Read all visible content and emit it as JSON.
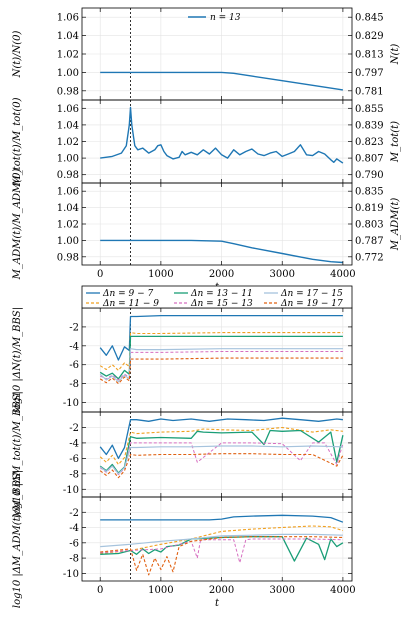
{
  "colors": {
    "blue": "#1f77b4",
    "green": "#1a9e77",
    "lightblue": "#a6c3dd",
    "orange": "#f0a020",
    "magenta": "#d66ec0",
    "darkorange": "#e06010"
  },
  "chart_data": [
    {
      "type": "line",
      "panel": "top-1",
      "legend": [
        "n = 13"
      ],
      "ylabel": "N(t)/N(0)",
      "right_ylabel": "N(t)",
      "yticks": [
        "1.06",
        "1.04",
        "1.02",
        "1.00",
        "0.98"
      ],
      "right_yticks": [
        "0.845",
        "0.829",
        "0.813",
        "0.797",
        "0.781"
      ],
      "ylim": [
        0.97,
        1.07
      ],
      "xlim": [
        -300,
        4150
      ],
      "vline_x": 500,
      "series": [
        {
          "name": "n = 13",
          "x": [
            0,
            500,
            1000,
            1500,
            2000,
            2200,
            2500,
            3000,
            3500,
            4000
          ],
          "y": [
            1.0,
            1.0,
            1.0,
            1.0,
            1.0,
            0.999,
            0.996,
            0.991,
            0.986,
            0.981
          ]
        }
      ]
    },
    {
      "type": "line",
      "panel": "top-2",
      "ylabel": "M_tot(t)/M_tot(0)",
      "right_ylabel": "M_tot(t)",
      "yticks": [
        "1.06",
        "1.04",
        "1.02",
        "1.00",
        "0.98"
      ],
      "right_yticks": [
        "0.855",
        "0.839",
        "0.823",
        "0.807",
        "0.790"
      ],
      "ylim": [
        0.97,
        1.07
      ],
      "xlim": [
        -300,
        4150
      ],
      "vline_x": 500,
      "series": [
        {
          "name": "n = 13",
          "x": [
            0,
            200,
            350,
            430,
            480,
            500,
            520,
            570,
            620,
            700,
            800,
            900,
            950,
            1000,
            1050,
            1100,
            1200,
            1300,
            1350,
            1400,
            1500,
            1600,
            1700,
            1800,
            1900,
            2000,
            2100,
            2200,
            2300,
            2400,
            2500,
            2600,
            2700,
            2800,
            2900,
            3000,
            3100,
            3200,
            3300,
            3400,
            3500,
            3600,
            3700,
            3800,
            3850,
            3900,
            4000
          ],
          "y": [
            1.0,
            1.002,
            1.006,
            1.015,
            1.04,
            1.061,
            1.04,
            1.015,
            1.01,
            1.012,
            1.006,
            1.01,
            1.015,
            1.016,
            1.008,
            1.003,
            0.999,
            1.001,
            1.008,
            1.004,
            1.007,
            1.004,
            1.01,
            1.005,
            1.012,
            1.004,
            1.0,
            1.01,
            1.004,
            1.008,
            1.011,
            1.005,
            1.003,
            1.006,
            1.008,
            1.002,
            1.005,
            1.008,
            1.016,
            1.004,
            1.003,
            1.008,
            1.005,
            0.998,
            0.995,
            0.999,
            0.994
          ]
        }
      ]
    },
    {
      "type": "line",
      "panel": "top-3",
      "ylabel": "M_ADM(t)/M_ADM(0)",
      "right_ylabel": "M_ADM(t)",
      "yticks": [
        "1.06",
        "1.04",
        "1.02",
        "1.00",
        "0.98"
      ],
      "right_yticks": [
        "0.835",
        "0.819",
        "0.803",
        "0.787",
        "0.772"
      ],
      "xticks": [
        "0",
        "1000",
        "2000",
        "3000",
        "4000"
      ],
      "xlabel": "t",
      "ylim": [
        0.97,
        1.07
      ],
      "xlim": [
        -300,
        4150
      ],
      "vline_x": 500,
      "series": [
        {
          "name": "n = 13",
          "x": [
            0,
            500,
            1000,
            1500,
            2000,
            2200,
            2500,
            3000,
            3500,
            3800,
            4000
          ],
          "y": [
            1.0,
            1.0,
            1.0,
            1.0,
            0.999,
            0.996,
            0.991,
            0.984,
            0.977,
            0.974,
            0.973
          ]
        }
      ]
    },
    {
      "type": "line",
      "panel": "bottom-1",
      "legend": [
        "Δn = 9 − 7",
        "Δn = 11 − 9",
        "Δn = 13 − 11",
        "Δn = 15 − 13",
        "Δn = 17 − 15",
        "Δn = 19 − 17"
      ],
      "ylabel": "log10 |ΔN(t)/M_BBS|",
      "yticks": [
        "-2",
        "-4",
        "-6",
        "-8",
        "-10"
      ],
      "ylim": [
        -11,
        0
      ],
      "xlim": [
        -300,
        4150
      ],
      "vline_x": 500,
      "series": [
        {
          "name": "Δn = 9 − 7",
          "x": [
            0,
            100,
            200,
            300,
            400,
            480,
            500,
            600,
            1000,
            2000,
            3000,
            4000
          ],
          "y": [
            -4.2,
            -5.0,
            -4.0,
            -5.5,
            -4.1,
            -4.5,
            -0.9,
            -0.9,
            -0.8,
            -0.8,
            -0.8,
            -0.8
          ]
        },
        {
          "name": "Δn = 11 − 9",
          "x": [
            0,
            100,
            200,
            300,
            400,
            480,
            500,
            600,
            1000,
            2000,
            3000,
            4000
          ],
          "y": [
            -6.1,
            -6.5,
            -6.0,
            -6.6,
            -5.8,
            -6.2,
            -2.6,
            -2.7,
            -2.7,
            -2.6,
            -2.6,
            -2.6
          ]
        },
        {
          "name": "Δn = 13 − 11",
          "x": [
            0,
            100,
            200,
            300,
            400,
            480,
            500,
            600,
            1000,
            2000,
            3000,
            4000
          ],
          "y": [
            -6.8,
            -7.2,
            -6.9,
            -7.5,
            -6.6,
            -7.0,
            -3.0,
            -3.0,
            -3.0,
            -3.0,
            -3.0,
            -3.0
          ]
        },
        {
          "name": "Δn = 15 − 13",
          "x": [
            0,
            100,
            200,
            300,
            400,
            480,
            500,
            600,
            1000,
            2000,
            3000,
            4000
          ],
          "y": [
            -7.2,
            -7.5,
            -7.1,
            -7.6,
            -7.0,
            -7.3,
            -4.7,
            -4.7,
            -4.7,
            -4.6,
            -4.6,
            -4.6
          ]
        },
        {
          "name": "Δn = 17 − 15",
          "x": [
            0,
            100,
            200,
            300,
            400,
            480,
            500,
            600,
            1000,
            2000,
            3000,
            4000
          ],
          "y": [
            -7.0,
            -7.6,
            -7.2,
            -7.8,
            -7.1,
            -7.5,
            -4.3,
            -4.4,
            -4.4,
            -4.3,
            -4.3,
            -4.3
          ]
        },
        {
          "name": "Δn = 19 − 17",
          "x": [
            0,
            100,
            200,
            300,
            400,
            480,
            500,
            600,
            1000,
            2000,
            3000,
            4000
          ],
          "y": [
            -7.5,
            -7.9,
            -7.4,
            -8.0,
            -7.3,
            -7.7,
            -5.4,
            -5.4,
            -5.4,
            -5.3,
            -5.3,
            -5.3
          ]
        }
      ]
    },
    {
      "type": "line",
      "panel": "bottom-2",
      "ylabel": "log10 |ΔM_tot(t)/M_BBS|",
      "yticks": [
        "-2",
        "-4",
        "-6",
        "-8",
        "-10"
      ],
      "ylim": [
        -11,
        0
      ],
      "xlim": [
        -300,
        4150
      ],
      "vline_x": 500,
      "series": [
        {
          "name": "Δn = 9 − 7",
          "x": [
            0,
            100,
            200,
            300,
            400,
            500,
            600,
            800,
            1000,
            1200,
            1500,
            1800,
            2100,
            2400,
            2700,
            3000,
            3300,
            3600,
            3900,
            4000
          ],
          "y": [
            -4.5,
            -5.5,
            -4.3,
            -6.0,
            -4.6,
            -1.0,
            -1.0,
            -1.2,
            -0.9,
            -1.1,
            -0.9,
            -1.2,
            -0.9,
            -1.0,
            -1.1,
            -0.8,
            -1.0,
            -1.2,
            -0.9,
            -1.0
          ]
        },
        {
          "name": "Δn = 11 − 9",
          "x": [
            0,
            100,
            200,
            300,
            400,
            500,
            600,
            1000,
            1500,
            1700,
            2000,
            2500,
            3000,
            3500,
            3800,
            4000
          ],
          "y": [
            -5.8,
            -6.5,
            -5.6,
            -6.8,
            -5.9,
            -2.6,
            -2.8,
            -2.6,
            -2.5,
            -2.2,
            -2.3,
            -2.4,
            -2.0,
            -2.6,
            -2.3,
            -2.5
          ]
        },
        {
          "name": "Δn = 13 − 11",
          "x": [
            0,
            100,
            200,
            300,
            400,
            500,
            600,
            1000,
            1500,
            1600,
            1700,
            2000,
            2500,
            2700,
            2800,
            3000,
            3300,
            3600,
            3800,
            3900,
            4000
          ],
          "y": [
            -7.0,
            -7.6,
            -6.8,
            -7.9,
            -7.1,
            -3.2,
            -3.4,
            -3.3,
            -3.4,
            -2.5,
            -2.6,
            -2.7,
            -2.6,
            -4.2,
            -2.4,
            -2.5,
            -2.4,
            -3.9,
            -2.6,
            -6.5,
            -3.0
          ]
        },
        {
          "name": "Δn = 15 − 13",
          "x": [
            0,
            100,
            200,
            300,
            400,
            500,
            600,
            1000,
            1500,
            1600,
            2000,
            2500,
            3000,
            3300,
            3500,
            3700,
            3900,
            4000
          ],
          "y": [
            -7.2,
            -7.8,
            -7.0,
            -8.1,
            -7.3,
            -4.0,
            -4.0,
            -4.0,
            -4.0,
            -6.5,
            -4.0,
            -4.0,
            -4.1,
            -6.3,
            -4.0,
            -4.0,
            -6.8,
            -4.1
          ]
        },
        {
          "name": "Δn = 17 − 15",
          "x": [
            0,
            100,
            200,
            300,
            400,
            500,
            600,
            1000,
            1500,
            2000,
            2500,
            3000,
            3500,
            4000
          ],
          "y": [
            -7.1,
            -7.7,
            -7.0,
            -8.0,
            -7.2,
            -4.6,
            -4.6,
            -4.5,
            -4.5,
            -4.4,
            -4.4,
            -4.5,
            -4.4,
            -4.5
          ]
        },
        {
          "name": "Δn = 19 − 17",
          "x": [
            0,
            100,
            200,
            300,
            400,
            500,
            600,
            1000,
            1500,
            2000,
            2500,
            3000,
            3500,
            3900,
            4000
          ],
          "y": [
            -7.6,
            -8.2,
            -7.5,
            -8.5,
            -7.6,
            -5.5,
            -5.6,
            -5.5,
            -5.5,
            -5.4,
            -5.4,
            -5.5,
            -5.5,
            -7.0,
            -5.6
          ]
        }
      ]
    },
    {
      "type": "line",
      "panel": "bottom-3",
      "ylabel": "log10 |ΔM_ADM(t)/M_BBS|",
      "yticks": [
        "-2",
        "-4",
        "-6",
        "-8",
        "-10"
      ],
      "xticks": [
        "0",
        "1000",
        "2000",
        "3000",
        "4000"
      ],
      "xlabel": "t",
      "ylim": [
        -11,
        0
      ],
      "xlim": [
        -300,
        4150
      ],
      "vline_x": 500,
      "series": [
        {
          "name": "Δn = 9 − 7",
          "x": [
            0,
            500,
            1000,
            1500,
            1800,
            2000,
            2200,
            2500,
            3000,
            3500,
            3800,
            4000
          ],
          "y": [
            -3.0,
            -3.0,
            -3.0,
            -3.0,
            -3.0,
            -2.9,
            -2.6,
            -2.5,
            -2.4,
            -2.5,
            -2.7,
            -3.3
          ]
        },
        {
          "name": "Δn = 11 − 9",
          "x": [
            0,
            500,
            1000,
            1500,
            2000,
            2500,
            3000,
            3500,
            3800,
            4000
          ],
          "y": [
            -7.4,
            -7.0,
            -6.2,
            -5.5,
            -4.5,
            -4.2,
            -4.0,
            -3.8,
            -3.9,
            -4.4
          ]
        },
        {
          "name": "Δn = 13 − 11",
          "x": [
            0,
            300,
            500,
            600,
            700,
            800,
            900,
            1000,
            1100,
            1300,
            1500,
            2000,
            2500,
            3000,
            3200,
            3400,
            3600,
            3700,
            3800,
            3900,
            4000
          ],
          "y": [
            -7.5,
            -7.4,
            -7.0,
            -7.5,
            -6.8,
            -7.4,
            -6.9,
            -7.2,
            -6.5,
            -6.3,
            -5.5,
            -5.3,
            -5.2,
            -5.2,
            -8.4,
            -5.4,
            -6.2,
            -8.2,
            -5.5,
            -6.5,
            -6.0
          ]
        },
        {
          "name": "Δn = 15 − 13",
          "x": [
            0,
            500,
            1000,
            1500,
            1600,
            1650,
            1700,
            2000,
            2200,
            2300,
            2400,
            2500,
            3000,
            3500,
            4000
          ],
          "y": [
            -7.3,
            -7.0,
            -6.8,
            -5.8,
            -8.0,
            -5.8,
            -5.6,
            -5.6,
            -5.6,
            -8.6,
            -5.6,
            -5.5,
            -5.5,
            -5.5,
            -5.6
          ]
        },
        {
          "name": "Δn = 17 − 15",
          "x": [
            0,
            500,
            1000,
            1500,
            2000,
            2500,
            3000,
            3500,
            4000
          ],
          "y": [
            -6.5,
            -6.2,
            -5.8,
            -5.5,
            -5.1,
            -5.0,
            -4.9,
            -4.9,
            -5.0
          ]
        },
        {
          "name": "Δn = 19 − 17",
          "x": [
            0,
            500,
            600,
            700,
            800,
            900,
            1000,
            1100,
            1200,
            1300,
            1500,
            2000,
            2500,
            3000,
            3500,
            4000
          ],
          "y": [
            -7.2,
            -6.8,
            -9.6,
            -7.5,
            -10.2,
            -8.0,
            -9.5,
            -7.8,
            -9.8,
            -6.5,
            -5.8,
            -5.3,
            -5.2,
            -5.2,
            -5.2,
            -5.3
          ]
        }
      ]
    }
  ]
}
